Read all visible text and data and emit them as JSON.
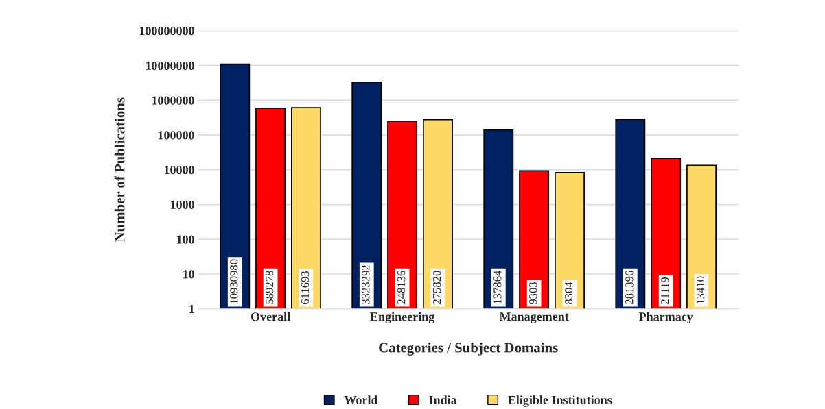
{
  "chart_data": {
    "type": "bar",
    "xlabel": "Categories / Subject Domains",
    "ylabel": "Number of Publications",
    "categories": [
      "Overall",
      "Engineering",
      "Management",
      "Pharmacy"
    ],
    "series": [
      {
        "name": "World",
        "color": "#002060",
        "values": [
          10930980,
          3323292,
          137864,
          281396
        ]
      },
      {
        "name": "India",
        "color": "#ff0000",
        "values": [
          589278,
          248136,
          9303,
          21119
        ]
      },
      {
        "name": "Eligible Institutions",
        "color": "#ffd966",
        "values": [
          611693,
          275820,
          8304,
          13410
        ]
      }
    ],
    "log": "y",
    "ylim": [
      1,
      100000000
    ],
    "yticks": [
      1,
      10,
      100,
      1000,
      10000,
      100000,
      1000000,
      10000000,
      100000000
    ],
    "grid": "y",
    "legend": "bottom",
    "data_labels": true
  }
}
